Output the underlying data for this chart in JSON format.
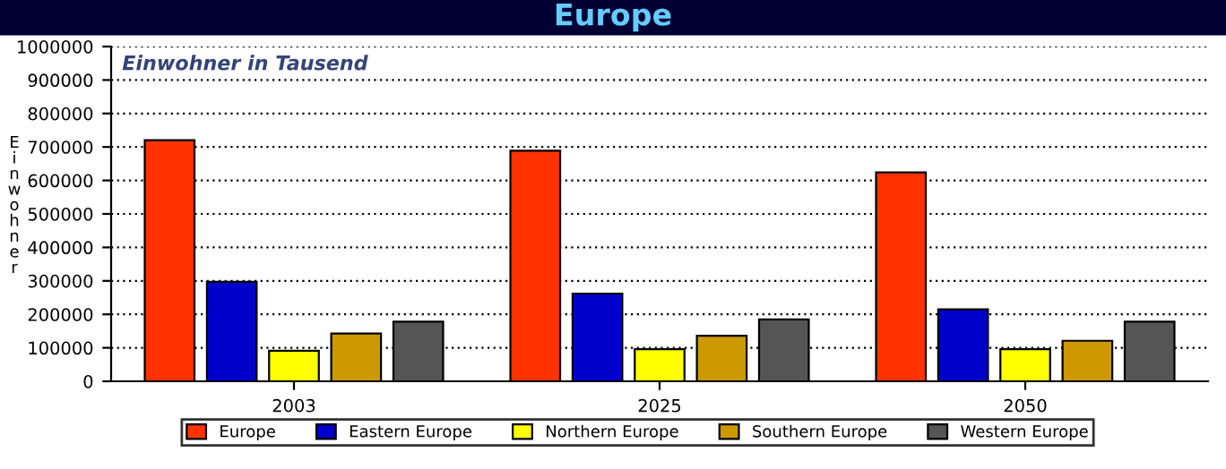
{
  "chart_data": {
    "type": "bar",
    "title": "Europe",
    "subtitle": "Einwohner in Tausend",
    "ylabel": "Einwohner",
    "categories": [
      "2003",
      "2025",
      "2050"
    ],
    "series": [
      {
        "name": "Europe",
        "color": "#ff3300",
        "values": [
          720000,
          689000,
          624000
        ]
      },
      {
        "name": "Eastern Europe",
        "color": "#0000cc",
        "values": [
          297000,
          262000,
          215000
        ]
      },
      {
        "name": "Northern Europe",
        "color": "#ffff00",
        "values": [
          91000,
          96000,
          96000
        ]
      },
      {
        "name": "Southern Europe",
        "color": "#cc9900",
        "values": [
          143000,
          136000,
          121000
        ]
      },
      {
        "name": "Western Europe",
        "color": "#555555",
        "values": [
          178000,
          185000,
          178000
        ]
      }
    ],
    "ylim": [
      0,
      1000000
    ],
    "yticks": [
      0,
      100000,
      200000,
      300000,
      400000,
      500000,
      600000,
      700000,
      800000,
      900000,
      1000000
    ],
    "grid": "y",
    "legend": "bottom"
  }
}
